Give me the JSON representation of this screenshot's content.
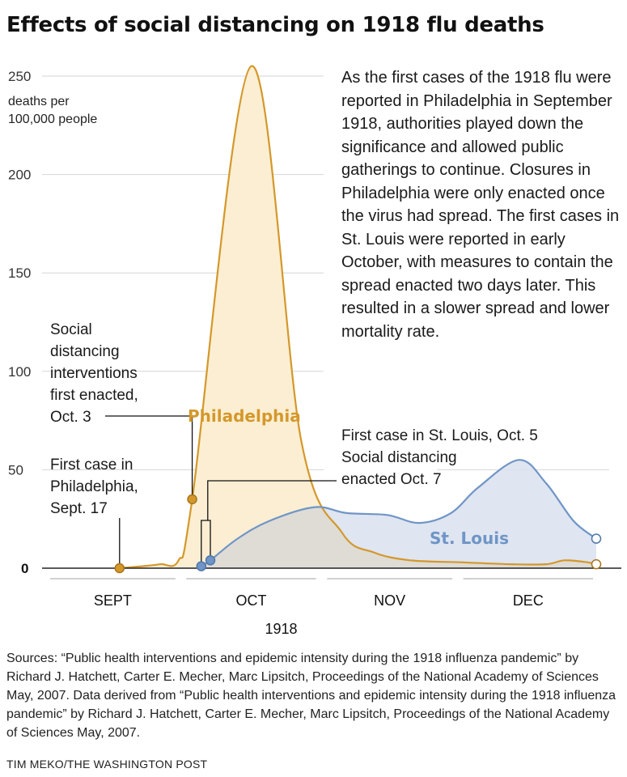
{
  "title": "Effects of social distancing on 1918 flu deaths",
  "description": "As the first cases of the 1918 flu were reported in Philadelphia in September 1918, authorities played down the significance and allowed public gatherings to continue. Closures in Philadelphia were only enacted once the virus had spread. The first cases in St. Louis were reported in early October, with measures to contain the spread enacted two days later. This resulted in a slower spread and lower mortality rate.",
  "sources": "Sources: “Public health interventions and epidemic intensity during the 1918 influenza pandemic” by Richard J. Hatchett, Carter E. Mecher, Marc Lipsitch, Proceedings of the National Academy of Sciences May, 2007. Data derived from “Public health interventions and epidemic intensity during the 1918 influenza pandemic” by Richard J. Hatchett, Carter E. Mecher, Marc Lipsitch, Proceedings of the National Academy of Sciences May, 2007.",
  "credit": "TIM MEKO/THE WASHINGTON POST",
  "colors": {
    "philadelphia_line": "#d4982a",
    "philadelphia_fill": "#fbeed3",
    "st_louis_line": "#6f95c6",
    "st_louis_fill": "#d9e1ee",
    "overlap_fill": "#dfdcd6",
    "gridline": "#d6d6d6",
    "axis": "#222222",
    "month_band": "#d0d0d0",
    "annotation_line": "#111111"
  },
  "chart_data": {
    "type": "area",
    "ylabel": [
      "deaths per",
      "100,000 people"
    ],
    "ylim": [
      0,
      250
    ],
    "yticks": [
      "250",
      "200",
      "150",
      "100",
      "50",
      "0"
    ],
    "ytick_values": [
      250,
      200,
      150,
      100,
      50,
      0
    ],
    "xlim": [
      "1918-09-01",
      "1918-12-31"
    ],
    "xlabel": "1918",
    "months": [
      {
        "label": "SEPT",
        "start": "1918-09-01",
        "end": "1918-09-30"
      },
      {
        "label": "OCT",
        "start": "1918-10-01",
        "end": "1918-10-31"
      },
      {
        "label": "NOV",
        "start": "1918-11-01",
        "end": "1918-11-30"
      },
      {
        "label": "DEC",
        "start": "1918-12-01",
        "end": "1918-12-31"
      }
    ],
    "grid": true,
    "series": [
      {
        "name": "Philadelphia",
        "points": [
          [
            "1918-09-17",
            0
          ],
          [
            "1918-09-22",
            1
          ],
          [
            "1918-09-26",
            2
          ],
          [
            "1918-09-30",
            4
          ],
          [
            "1918-10-03",
            35
          ],
          [
            "1918-10-16",
            255
          ],
          [
            "1918-10-27",
            65
          ],
          [
            "1918-11-05",
            18
          ],
          [
            "1918-11-12",
            8
          ],
          [
            "1918-11-20",
            4
          ],
          [
            "1918-12-01",
            3
          ],
          [
            "1918-12-12",
            2
          ],
          [
            "1918-12-20",
            2
          ],
          [
            "1918-12-24",
            4
          ],
          [
            "1918-12-29",
            3
          ],
          [
            "1918-12-31",
            2
          ]
        ]
      },
      {
        "name": "St. Louis",
        "points": [
          [
            "1918-10-05",
            1
          ],
          [
            "1918-10-07",
            4
          ],
          [
            "1918-10-13",
            15
          ],
          [
            "1918-10-20",
            24
          ],
          [
            "1918-10-30",
            31
          ],
          [
            "1918-11-06",
            28
          ],
          [
            "1918-11-15",
            27
          ],
          [
            "1918-11-22",
            23
          ],
          [
            "1918-11-29",
            28
          ],
          [
            "1918-12-05",
            41
          ],
          [
            "1918-12-14",
            55
          ],
          [
            "1918-12-20",
            43
          ],
          [
            "1918-12-26",
            24
          ],
          [
            "1918-12-31",
            15
          ]
        ]
      }
    ],
    "markers": [
      {
        "series": "Philadelphia",
        "x": "1918-09-17",
        "y": 0,
        "style": "filled"
      },
      {
        "series": "Philadelphia",
        "x": "1918-10-03",
        "y": 35,
        "style": "filled"
      },
      {
        "series": "Philadelphia",
        "x": "1918-12-31",
        "y": 2,
        "style": "hollow"
      },
      {
        "series": "St. Louis",
        "x": "1918-10-05",
        "y": 1,
        "style": "filled"
      },
      {
        "series": "St. Louis",
        "x": "1918-10-07",
        "y": 4,
        "style": "filled"
      },
      {
        "series": "St. Louis",
        "x": "1918-12-31",
        "y": 15,
        "style": "hollow"
      }
    ],
    "annotations": [
      {
        "id": "phl-first-case",
        "lines": [
          "First case in",
          "Philadelphia,",
          "Sept. 17"
        ]
      },
      {
        "id": "phl-distancing",
        "lines": [
          "Social",
          "distancing",
          "interventions",
          "first enacted,",
          "Oct. 3"
        ]
      },
      {
        "id": "stl-first-case",
        "lines": [
          "First case in St. Louis, Oct. 5",
          "Social distancing",
          "enacted Oct. 7"
        ]
      }
    ]
  }
}
